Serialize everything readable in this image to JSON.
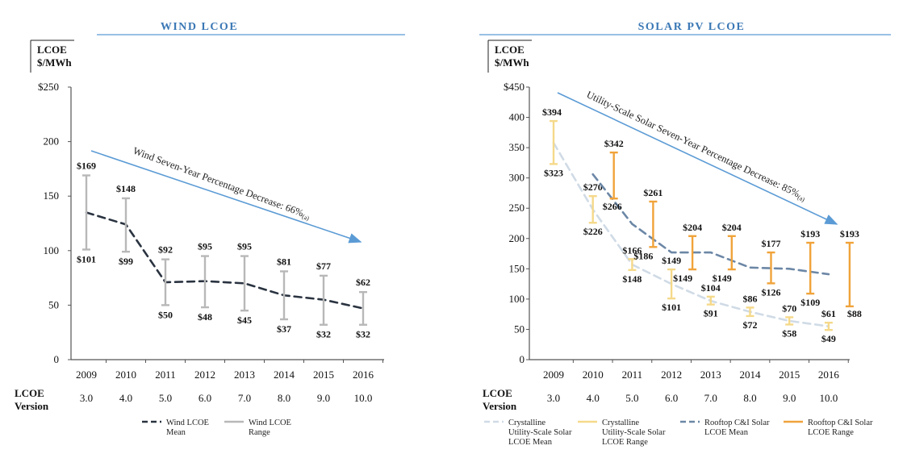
{
  "colors": {
    "title": "#3b78b5",
    "axis": "#555555",
    "trend_arrow": "#5b9bd5",
    "wind_mean": "#2a3340",
    "wind_range": "#b8b8b8",
    "crys_mean": "#d0dbe6",
    "crys_range": "#f5d98a",
    "rooftop_mean": "#6c87a6",
    "rooftop_range": "#f0a33a"
  },
  "version_row_label": [
    "LCOE",
    "Version"
  ],
  "chart_data": [
    {
      "type": "line",
      "title": "WIND LCOE",
      "ylabel": [
        "LCOE",
        "$/MWh"
      ],
      "categories": [
        "2009",
        "2010",
        "2011",
        "2012",
        "2013",
        "2014",
        "2015",
        "2016"
      ],
      "versions": [
        "3.0",
        "4.0",
        "5.0",
        "6.0",
        "7.0",
        "8.0",
        "9.0",
        "10.0"
      ],
      "ylim": [
        0,
        250
      ],
      "yticks": [
        0,
        50,
        100,
        150,
        200,
        250
      ],
      "ytick_labels": [
        "0",
        "50",
        "100",
        "150",
        "200",
        "$250"
      ],
      "grid": false,
      "trend_annotation": {
        "text": "Wind Seven-Year Percentage Decrease: 66%",
        "note": "(a)"
      },
      "series": [
        {
          "name": "Wind LCOE Mean",
          "style": "dashed-line",
          "values": [
            135,
            124,
            71,
            72,
            70,
            59,
            55,
            47
          ]
        },
        {
          "name": "Wind LCOE Range",
          "style": "range",
          "high": [
            169,
            148,
            92,
            95,
            95,
            81,
            77,
            62
          ],
          "low": [
            101,
            99,
            50,
            48,
            45,
            37,
            32,
            32
          ],
          "high_labels": [
            "$169",
            "$148",
            "$92",
            "$95",
            "$95",
            "$81",
            "$77",
            "$62"
          ],
          "low_labels": [
            "$101",
            "$99",
            "$50",
            "$48",
            "$45",
            "$37",
            "$32",
            "$32"
          ]
        }
      ],
      "legend": [
        {
          "lines": [
            "Wind LCOE",
            "Mean"
          ],
          "series": 0
        },
        {
          "lines": [
            "Wind LCOE",
            "Range"
          ],
          "series": 1
        }
      ]
    },
    {
      "type": "line",
      "title": "SOLAR PV LCOE",
      "ylabel": [
        "LCOE",
        "$/MWh"
      ],
      "categories": [
        "2009",
        "2010",
        "2011",
        "2012",
        "2013",
        "2014",
        "2015",
        "2016"
      ],
      "versions": [
        "3.0",
        "4.0",
        "5.0",
        "6.0",
        "7.0",
        "8.0",
        "9.0",
        "10.0"
      ],
      "ylim": [
        0,
        450
      ],
      "yticks": [
        0,
        50,
        100,
        150,
        200,
        250,
        300,
        350,
        400,
        450
      ],
      "ytick_labels": [
        "0",
        "50",
        "100",
        "150",
        "200",
        "250",
        "300",
        "350",
        "400",
        "$450"
      ],
      "grid": false,
      "trend_annotation": {
        "text": "Utility-Scale Solar Seven-Year Percentage Decrease: 85%",
        "note": "(a)"
      },
      "series": [
        {
          "name": "Crystalline Utility-Scale Solar LCOE Mean",
          "style": "dashed-line",
          "values": [
            358,
            248,
            157,
            125,
            97,
            79,
            64,
            55
          ]
        },
        {
          "name": "Crystalline Utility-Scale Solar LCOE Range",
          "style": "range",
          "high": [
            394,
            270,
            166,
            149,
            104,
            86,
            70,
            61
          ],
          "low": [
            323,
            226,
            148,
            101,
            91,
            72,
            58,
            49
          ],
          "high_labels": [
            "$394",
            "$270",
            "$166",
            "$149",
            "$104",
            "$86",
            "$70",
            "$61"
          ],
          "low_labels": [
            "$323",
            "$226",
            "$148",
            "$101",
            "$91",
            "$72",
            "$58",
            "$49"
          ]
        },
        {
          "name": "Rooftop C&I Solar LCOE Mean",
          "style": "dashed-line",
          "values": [
            null,
            306,
            224,
            177,
            177,
            152,
            150,
            141
          ]
        },
        {
          "name": "Rooftop C&I Solar LCOE Range",
          "style": "range",
          "high": [
            null,
            342,
            261,
            204,
            204,
            177,
            193,
            193
          ],
          "low": [
            null,
            266,
            186,
            149,
            149,
            126,
            109,
            88
          ],
          "high_labels": [
            null,
            "$342",
            "$261",
            "$204",
            "$204",
            "$177",
            "$193",
            "$193"
          ],
          "low_labels": [
            null,
            "$266",
            "$186",
            "$149",
            "$149",
            "$126",
            "$109",
            "$88"
          ]
        }
      ],
      "legend": [
        {
          "lines": [
            "Crystalline",
            "Utility-Scale Solar",
            "LCOE Mean"
          ],
          "series": 0
        },
        {
          "lines": [
            "Crystalline",
            "Utility-Scale Solar",
            "LCOE Range"
          ],
          "series": 1
        },
        {
          "lines": [
            "Rooftop C&I Solar",
            "LCOE Mean"
          ],
          "series": 2
        },
        {
          "lines": [
            "Rooftop C&I Solar",
            "LCOE Range"
          ],
          "series": 3
        }
      ]
    }
  ]
}
